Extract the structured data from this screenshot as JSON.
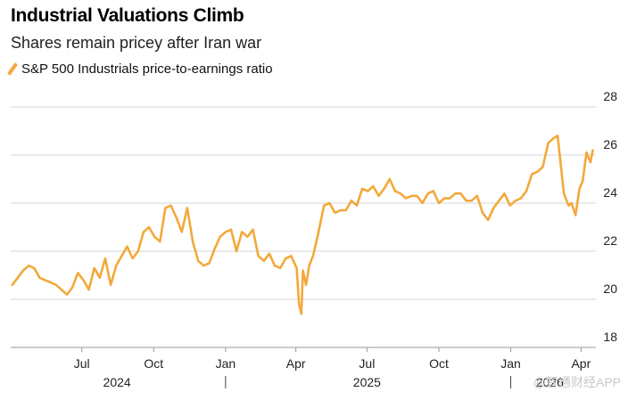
{
  "header": {
    "title": "Industrial Valuations Climb",
    "subtitle": "Shares remain pricey after Iran war"
  },
  "watermark": "@智通财经APP",
  "chart_data": {
    "type": "line",
    "title": "Industrial Valuations Climb",
    "subtitle": "Shares remain pricey after Iran war",
    "xlabel": "",
    "ylabel": "",
    "ylim": [
      18,
      28
    ],
    "y_ticks": [
      18,
      20,
      22,
      24,
      26,
      28
    ],
    "y_axis_side": "right",
    "grid": true,
    "legend_position": "top-left",
    "x_range": [
      "2024-04-01",
      "2026-04-20"
    ],
    "month_ticks": [
      {
        "label": "Jul",
        "date": "2024-07-01"
      },
      {
        "label": "Oct",
        "date": "2024-10-01"
      },
      {
        "label": "Jan",
        "date": "2025-01-01"
      },
      {
        "label": "Apr",
        "date": "2025-04-01"
      },
      {
        "label": "Jul",
        "date": "2025-07-01"
      },
      {
        "label": "Oct",
        "date": "2025-10-01"
      },
      {
        "label": "Jan",
        "date": "2026-01-01"
      },
      {
        "label": "Apr",
        "date": "2026-04-01"
      }
    ],
    "year_labels": [
      {
        "label": "2024",
        "date": "2024-08-15"
      },
      {
        "label": "2025",
        "date": "2025-07-01"
      },
      {
        "label": "2026",
        "date": "2026-02-20"
      }
    ],
    "year_dividers": [
      "2025-01-01",
      "2026-01-01"
    ],
    "series": [
      {
        "name": "S&P 500 Industrials price-to-earnings ratio",
        "color": "#f2a93b",
        "x": [
          "2024-04-03",
          "2024-04-10",
          "2024-04-17",
          "2024-04-24",
          "2024-05-01",
          "2024-05-08",
          "2024-05-15",
          "2024-05-22",
          "2024-05-29",
          "2024-06-05",
          "2024-06-12",
          "2024-06-19",
          "2024-06-26",
          "2024-07-03",
          "2024-07-10",
          "2024-07-17",
          "2024-07-24",
          "2024-07-31",
          "2024-08-07",
          "2024-08-14",
          "2024-08-21",
          "2024-08-28",
          "2024-09-04",
          "2024-09-11",
          "2024-09-18",
          "2024-09-25",
          "2024-10-02",
          "2024-10-09",
          "2024-10-16",
          "2024-10-23",
          "2024-10-30",
          "2024-11-06",
          "2024-11-13",
          "2024-11-20",
          "2024-11-27",
          "2024-12-04",
          "2024-12-11",
          "2024-12-18",
          "2024-12-25",
          "2025-01-01",
          "2025-01-08",
          "2025-01-15",
          "2025-01-22",
          "2025-01-29",
          "2025-02-05",
          "2025-02-12",
          "2025-02-19",
          "2025-02-26",
          "2025-03-05",
          "2025-03-12",
          "2025-03-19",
          "2025-03-26",
          "2025-04-02",
          "2025-04-05",
          "2025-04-08",
          "2025-04-10",
          "2025-04-14",
          "2025-04-18",
          "2025-04-23",
          "2025-04-30",
          "2025-05-07",
          "2025-05-14",
          "2025-05-21",
          "2025-05-28",
          "2025-06-04",
          "2025-06-11",
          "2025-06-18",
          "2025-06-25",
          "2025-07-02",
          "2025-07-09",
          "2025-07-16",
          "2025-07-23",
          "2025-07-30",
          "2025-08-06",
          "2025-08-13",
          "2025-08-20",
          "2025-08-27",
          "2025-09-03",
          "2025-09-10",
          "2025-09-17",
          "2025-09-24",
          "2025-10-01",
          "2025-10-08",
          "2025-10-15",
          "2025-10-22",
          "2025-10-29",
          "2025-11-05",
          "2025-11-12",
          "2025-11-19",
          "2025-11-26",
          "2025-12-03",
          "2025-12-10",
          "2025-12-17",
          "2025-12-24",
          "2025-12-31",
          "2026-01-07",
          "2026-01-14",
          "2026-01-21",
          "2026-01-28",
          "2026-02-04",
          "2026-02-11",
          "2026-02-18",
          "2026-02-25",
          "2026-03-02",
          "2026-03-06",
          "2026-03-10",
          "2026-03-16",
          "2026-03-20",
          "2026-03-25",
          "2026-03-30",
          "2026-04-03",
          "2026-04-08",
          "2026-04-13",
          "2026-04-16"
        ],
        "values": [
          20.6,
          20.9,
          21.2,
          21.4,
          21.3,
          20.9,
          20.8,
          20.7,
          20.6,
          20.4,
          20.2,
          20.5,
          21.1,
          20.8,
          20.4,
          21.3,
          20.9,
          21.7,
          20.6,
          21.4,
          21.8,
          22.2,
          21.7,
          22.0,
          22.8,
          23.0,
          22.6,
          22.4,
          23.8,
          23.9,
          23.4,
          22.8,
          23.8,
          22.4,
          21.6,
          21.4,
          21.5,
          22.1,
          22.6,
          22.8,
          22.9,
          22.0,
          22.8,
          22.6,
          22.9,
          21.8,
          21.6,
          21.9,
          21.4,
          21.3,
          21.7,
          21.8,
          21.3,
          19.8,
          19.4,
          21.2,
          20.6,
          21.4,
          21.8,
          22.8,
          23.9,
          24.0,
          23.6,
          23.7,
          23.7,
          24.1,
          23.9,
          24.6,
          24.5,
          24.7,
          24.3,
          24.6,
          25.0,
          24.5,
          24.4,
          24.2,
          24.3,
          24.3,
          24.0,
          24.4,
          24.5,
          24.0,
          24.2,
          24.2,
          24.4,
          24.4,
          24.1,
          24.1,
          24.3,
          23.6,
          23.3,
          23.8,
          24.1,
          24.4,
          23.9,
          24.1,
          24.2,
          24.5,
          25.2,
          25.3,
          25.5,
          26.5,
          26.7,
          26.8,
          25.6,
          24.4,
          23.9,
          24.0,
          23.5,
          24.6,
          24.9,
          26.1,
          25.7,
          26.2
        ]
      }
    ]
  }
}
